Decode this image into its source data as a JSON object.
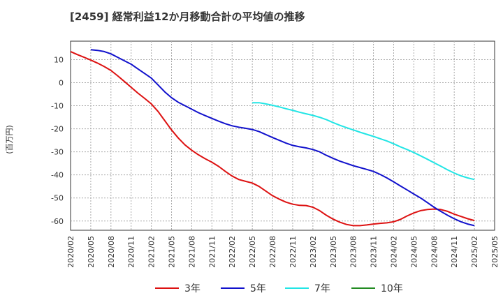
{
  "chart_data": {
    "type": "line",
    "title": "[2459]  経常利益12か月移動合計の平均値の推移",
    "ylabel": "(百万円)",
    "xlabel": "",
    "ylim": [
      -64,
      18
    ],
    "yticks": [
      10,
      0,
      -10,
      -20,
      -30,
      -40,
      -50,
      -60
    ],
    "grid": true,
    "legend_placement": "bottom",
    "x_start": "2020/02",
    "x_end": "2025/05",
    "x_ticks": [
      "2020/02",
      "2020/05",
      "2020/08",
      "2020/11",
      "2021/02",
      "2021/05",
      "2021/08",
      "2021/11",
      "2022/02",
      "2022/05",
      "2022/08",
      "2022/11",
      "2023/02",
      "2023/05",
      "2023/08",
      "2023/11",
      "2024/02",
      "2024/05",
      "2024/08",
      "2024/11",
      "2025/02",
      "2025/05"
    ],
    "series": [
      {
        "name": "3年",
        "color": "#dd1111",
        "points": [
          [
            "2020/02",
            13.5
          ],
          [
            "2020/03",
            12.2
          ],
          [
            "2020/04",
            11.0
          ],
          [
            "2020/05",
            9.8
          ],
          [
            "2020/06",
            8.5
          ],
          [
            "2020/07",
            7.0
          ],
          [
            "2020/08",
            5.3
          ],
          [
            "2020/09",
            3.0
          ],
          [
            "2020/10",
            0.5
          ],
          [
            "2020/11",
            -2.0
          ],
          [
            "2020/12",
            -4.5
          ],
          [
            "2021/01",
            -6.8
          ],
          [
            "2021/02",
            -9.2
          ],
          [
            "2021/03",
            -12.5
          ],
          [
            "2021/04",
            -16.5
          ],
          [
            "2021/05",
            -20.5
          ],
          [
            "2021/06",
            -24.0
          ],
          [
            "2021/07",
            -27.0
          ],
          [
            "2021/08",
            -29.3
          ],
          [
            "2021/09",
            -31.3
          ],
          [
            "2021/10",
            -33.0
          ],
          [
            "2021/11",
            -34.5
          ],
          [
            "2021/12",
            -36.3
          ],
          [
            "2022/01",
            -38.5
          ],
          [
            "2022/02",
            -40.5
          ],
          [
            "2022/03",
            -42.0
          ],
          [
            "2022/04",
            -42.8
          ],
          [
            "2022/05",
            -43.5
          ],
          [
            "2022/06",
            -45.0
          ],
          [
            "2022/07",
            -47.0
          ],
          [
            "2022/08",
            -49.0
          ],
          [
            "2022/09",
            -50.5
          ],
          [
            "2022/10",
            -51.8
          ],
          [
            "2022/11",
            -52.7
          ],
          [
            "2022/12",
            -53.2
          ],
          [
            "2023/01",
            -53.3
          ],
          [
            "2023/02",
            -54.0
          ],
          [
            "2023/03",
            -55.5
          ],
          [
            "2023/04",
            -57.5
          ],
          [
            "2023/05",
            -59.2
          ],
          [
            "2023/06",
            -60.5
          ],
          [
            "2023/07",
            -61.5
          ],
          [
            "2023/08",
            -62.0
          ],
          [
            "2023/09",
            -62.0
          ],
          [
            "2023/10",
            -61.7
          ],
          [
            "2023/11",
            -61.3
          ],
          [
            "2023/12",
            -61.0
          ],
          [
            "2024/01",
            -60.8
          ],
          [
            "2024/02",
            -60.3
          ],
          [
            "2024/03",
            -59.3
          ],
          [
            "2024/04",
            -57.8
          ],
          [
            "2024/05",
            -56.5
          ],
          [
            "2024/06",
            -55.5
          ],
          [
            "2024/07",
            -55.0
          ],
          [
            "2024/08",
            -54.8
          ],
          [
            "2024/09",
            -55.0
          ],
          [
            "2024/10",
            -55.8
          ],
          [
            "2024/11",
            -57.0
          ],
          [
            "2024/12",
            -58.0
          ],
          [
            "2025/01",
            -59.0
          ],
          [
            "2025/02",
            -59.8
          ]
        ]
      },
      {
        "name": "5年",
        "color": "#1111cc",
        "points": [
          [
            "2020/05",
            14.3
          ],
          [
            "2020/06",
            14.0
          ],
          [
            "2020/07",
            13.5
          ],
          [
            "2020/08",
            12.5
          ],
          [
            "2020/09",
            11.0
          ],
          [
            "2020/10",
            9.5
          ],
          [
            "2020/11",
            8.0
          ],
          [
            "2020/12",
            6.0
          ],
          [
            "2021/01",
            4.0
          ],
          [
            "2021/02",
            2.0
          ],
          [
            "2021/03",
            -1.0
          ],
          [
            "2021/04",
            -4.0
          ],
          [
            "2021/05",
            -6.5
          ],
          [
            "2021/06",
            -8.5
          ],
          [
            "2021/07",
            -10.0
          ],
          [
            "2021/08",
            -11.5
          ],
          [
            "2021/09",
            -13.0
          ],
          [
            "2021/10",
            -14.3
          ],
          [
            "2021/11",
            -15.5
          ],
          [
            "2021/12",
            -16.7
          ],
          [
            "2022/01",
            -17.8
          ],
          [
            "2022/02",
            -18.7
          ],
          [
            "2022/03",
            -19.3
          ],
          [
            "2022/04",
            -19.8
          ],
          [
            "2022/05",
            -20.3
          ],
          [
            "2022/06",
            -21.2
          ],
          [
            "2022/07",
            -22.5
          ],
          [
            "2022/08",
            -23.8
          ],
          [
            "2022/09",
            -25.0
          ],
          [
            "2022/10",
            -26.2
          ],
          [
            "2022/11",
            -27.2
          ],
          [
            "2022/12",
            -27.8
          ],
          [
            "2023/01",
            -28.3
          ],
          [
            "2023/02",
            -29.0
          ],
          [
            "2023/03",
            -30.0
          ],
          [
            "2023/04",
            -31.5
          ],
          [
            "2023/05",
            -32.8
          ],
          [
            "2023/06",
            -34.0
          ],
          [
            "2023/07",
            -35.0
          ],
          [
            "2023/08",
            -36.0
          ],
          [
            "2023/09",
            -36.8
          ],
          [
            "2023/10",
            -37.6
          ],
          [
            "2023/11",
            -38.5
          ],
          [
            "2023/12",
            -39.8
          ],
          [
            "2024/01",
            -41.3
          ],
          [
            "2024/02",
            -43.0
          ],
          [
            "2024/03",
            -44.8
          ],
          [
            "2024/04",
            -46.5
          ],
          [
            "2024/05",
            -48.3
          ],
          [
            "2024/06",
            -50.0
          ],
          [
            "2024/07",
            -52.0
          ],
          [
            "2024/08",
            -54.0
          ],
          [
            "2024/09",
            -55.8
          ],
          [
            "2024/10",
            -57.5
          ],
          [
            "2024/11",
            -59.0
          ],
          [
            "2024/12",
            -60.3
          ],
          [
            "2025/01",
            -61.3
          ],
          [
            "2025/02",
            -62.0
          ]
        ]
      },
      {
        "name": "7年",
        "color": "#22e5e5",
        "points": [
          [
            "2022/05",
            -8.7
          ],
          [
            "2022/06",
            -8.7
          ],
          [
            "2022/07",
            -9.2
          ],
          [
            "2022/08",
            -9.8
          ],
          [
            "2022/09",
            -10.5
          ],
          [
            "2022/10",
            -11.3
          ],
          [
            "2022/11",
            -12.0
          ],
          [
            "2022/12",
            -12.8
          ],
          [
            "2023/01",
            -13.5
          ],
          [
            "2023/02",
            -14.2
          ],
          [
            "2023/03",
            -15.0
          ],
          [
            "2023/04",
            -16.0
          ],
          [
            "2023/05",
            -17.3
          ],
          [
            "2023/06",
            -18.5
          ],
          [
            "2023/07",
            -19.5
          ],
          [
            "2023/08",
            -20.5
          ],
          [
            "2023/09",
            -21.5
          ],
          [
            "2023/10",
            -22.4
          ],
          [
            "2023/11",
            -23.3
          ],
          [
            "2023/12",
            -24.3
          ],
          [
            "2024/01",
            -25.3
          ],
          [
            "2024/02",
            -26.5
          ],
          [
            "2024/03",
            -27.8
          ],
          [
            "2024/04",
            -29.0
          ],
          [
            "2024/05",
            -30.3
          ],
          [
            "2024/06",
            -31.7
          ],
          [
            "2024/07",
            -33.2
          ],
          [
            "2024/08",
            -34.7
          ],
          [
            "2024/09",
            -36.2
          ],
          [
            "2024/10",
            -37.8
          ],
          [
            "2024/11",
            -39.2
          ],
          [
            "2024/12",
            -40.4
          ],
          [
            "2025/01",
            -41.3
          ],
          [
            "2025/02",
            -42.0
          ]
        ]
      },
      {
        "name": "10年",
        "color": "#228b22",
        "points": []
      }
    ]
  }
}
